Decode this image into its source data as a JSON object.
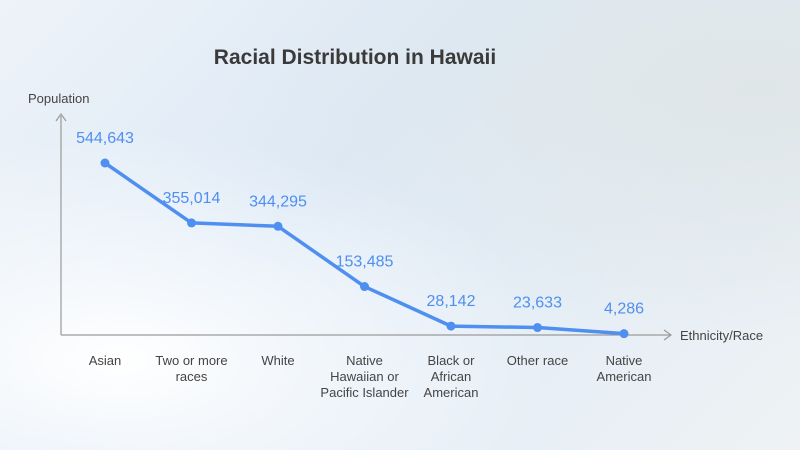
{
  "chart_data": {
    "type": "line",
    "title": "Racial Distribution in Hawaii",
    "ylabel": "Population",
    "xlabel": "Ethnicity/Race",
    "categories": [
      "Asian",
      "Two or more races",
      "White",
      "Native Hawaiian or Pacific Islander",
      "Black or African American",
      "Other race",
      "Native American"
    ],
    "category_lines": [
      [
        "Asian"
      ],
      [
        "Two or more",
        "races"
      ],
      [
        "White"
      ],
      [
        "Native",
        "Hawaiian or",
        "Pacific Islander"
      ],
      [
        "Black or",
        "African",
        "American"
      ],
      [
        "Other race"
      ],
      [
        "Native",
        "American"
      ]
    ],
    "values": [
      544643,
      355014,
      344295,
      153485,
      28142,
      23633,
      4286
    ],
    "value_labels": [
      "544,643",
      "355,014",
      "344,295",
      "153,485",
      "28,142",
      "23,633",
      "4,286"
    ],
    "ylim": [
      0,
      600000
    ],
    "grid": false,
    "colors": {
      "line": "#4f8ff0",
      "axis": "#9a9a9a",
      "text": "#444444",
      "title": "#3a3a3a"
    }
  }
}
